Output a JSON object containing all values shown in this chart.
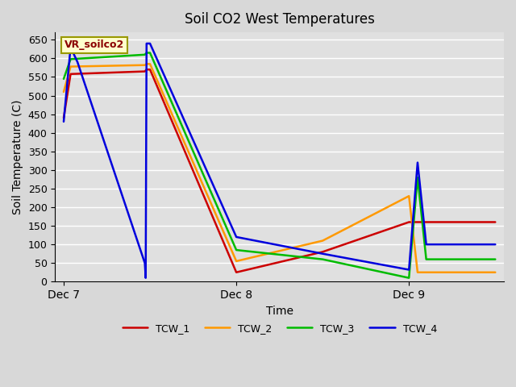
{
  "title": "Soil CO2 West Temperatures",
  "xlabel": "Time",
  "ylabel": "Soil Temperature (C)",
  "annotation": "VR_soilco2",
  "ylim": [
    0,
    670
  ],
  "yticks": [
    0,
    50,
    100,
    150,
    200,
    250,
    300,
    350,
    400,
    450,
    500,
    550,
    600,
    650
  ],
  "xtick_labels": [
    "Dec 7",
    "Dec 8",
    "Dec 9"
  ],
  "xtick_positions": [
    0,
    1,
    2
  ],
  "fig_facecolor": "#d8d8d8",
  "ax_facecolor": "#e0e0e0",
  "grid_color": "#ffffff",
  "series_order": [
    "TCW_1",
    "TCW_2",
    "TCW_3",
    "TCW_4"
  ],
  "series": {
    "TCW_1": {
      "color": "#cc0000",
      "x": [
        0,
        0.04,
        0.47,
        0.48,
        0.5,
        1.0,
        1.5,
        2.0,
        2.05,
        2.5
      ],
      "y": [
        440,
        558,
        565,
        570,
        570,
        25,
        80,
        160,
        160,
        160
      ]
    },
    "TCW_2": {
      "color": "#ff9900",
      "x": [
        0,
        0.04,
        0.47,
        0.48,
        0.5,
        1.0,
        1.5,
        2.0,
        2.05,
        2.5
      ],
      "y": [
        510,
        578,
        582,
        585,
        585,
        55,
        110,
        230,
        25,
        25
      ]
    },
    "TCW_3": {
      "color": "#00bb00",
      "x": [
        0,
        0.04,
        0.47,
        0.48,
        0.5,
        1.0,
        1.5,
        2.0,
        2.05,
        2.1,
        2.5
      ],
      "y": [
        545,
        598,
        610,
        615,
        615,
        85,
        60,
        10,
        280,
        60,
        60
      ]
    },
    "TCW_4": {
      "color": "#0000dd",
      "x": [
        0,
        0.04,
        0.08,
        0.47,
        0.475,
        0.48,
        0.5,
        1.0,
        1.5,
        2.0,
        2.05,
        2.1,
        2.5
      ],
      "y": [
        430,
        630,
        590,
        50,
        10,
        640,
        640,
        120,
        75,
        32,
        320,
        100,
        100
      ]
    }
  },
  "legend": [
    "TCW_1",
    "TCW_2",
    "TCW_3",
    "TCW_4"
  ],
  "legend_colors": [
    "#cc0000",
    "#ff9900",
    "#00bb00",
    "#0000dd"
  ],
  "linewidth": 1.8
}
